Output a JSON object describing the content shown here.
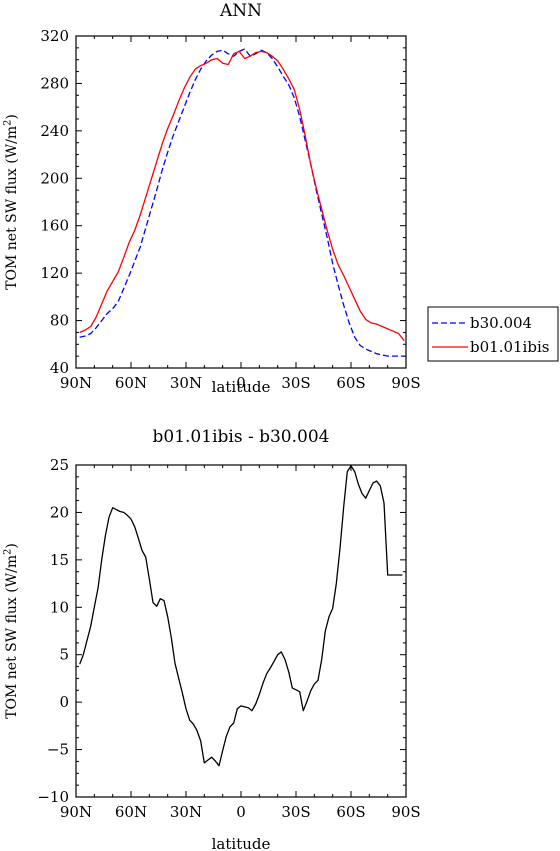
{
  "chart_data": [
    {
      "type": "line",
      "title": "ANN",
      "xlabel": "latitude",
      "ylabel": "TOM net SW flux (W/m~S~2~N~)",
      "xlim": [
        -90,
        90
      ],
      "ylim": [
        40,
        320
      ],
      "x_tick_values": [
        -90,
        -60,
        -30,
        0,
        30,
        60,
        90
      ],
      "x_tick_labels": [
        "90N",
        "60N",
        "30N",
        "0",
        "30S",
        "60S",
        "90S"
      ],
      "y_tick_values": [
        40,
        80,
        120,
        160,
        200,
        240,
        280,
        320
      ],
      "y_tick_labels": [
        "40",
        "80",
        "120",
        "160",
        "200",
        "240",
        "280",
        "320"
      ],
      "legend": {
        "placement": "right",
        "entries": [
          "b30.004",
          "b01.01ibis"
        ]
      },
      "series": [
        {
          "name": "b30.004",
          "color": "#0000ff",
          "dash": "dashed",
          "x": [
            -88,
            -85,
            -82,
            -79,
            -76,
            -73,
            -70,
            -67,
            -64,
            -61,
            -58,
            -55,
            -52,
            -49,
            -46,
            -43,
            -40,
            -37,
            -34,
            -31,
            -28,
            -25,
            -22,
            -19,
            -16,
            -13,
            -10,
            -7,
            -4,
            -1,
            2,
            5,
            8,
            11,
            14,
            17,
            20,
            23,
            26,
            29,
            32,
            35,
            38,
            41,
            44,
            47,
            50,
            53,
            56,
            59,
            62,
            65,
            68,
            71,
            74,
            77,
            80,
            83,
            86,
            89
          ],
          "y": [
            66,
            67,
            69,
            74,
            80,
            86,
            90,
            96,
            107,
            118,
            130,
            142,
            158,
            174,
            190,
            207,
            222,
            236,
            248,
            260,
            272,
            283,
            292,
            299,
            304,
            307,
            308,
            305,
            303,
            307,
            309,
            303,
            305,
            308,
            306,
            301,
            294,
            286,
            279,
            268,
            252,
            232,
            212,
            190,
            170,
            150,
            128,
            110,
            93,
            78,
            66,
            59,
            56,
            54,
            52,
            51,
            50,
            50,
            50,
            50
          ]
        },
        {
          "name": "b01.01ibis",
          "color": "#ff0000",
          "dash": "solid",
          "x": [
            -88,
            -85,
            -82,
            -79,
            -76,
            -73,
            -70,
            -67,
            -64,
            -61,
            -58,
            -55,
            -52,
            -49,
            -46,
            -43,
            -40,
            -37,
            -34,
            -31,
            -28,
            -25,
            -22,
            -19,
            -16,
            -13,
            -10,
            -7,
            -4,
            -1,
            2,
            5,
            8,
            11,
            14,
            17,
            20,
            23,
            26,
            29,
            32,
            35,
            38,
            41,
            44,
            47,
            50,
            53,
            56,
            59,
            62,
            65,
            68,
            71,
            74,
            77,
            80,
            83,
            86,
            89
          ],
          "y": [
            70,
            72,
            75,
            83,
            94,
            105,
            113,
            121,
            133,
            146,
            156,
            169,
            184,
            199,
            214,
            229,
            242,
            253,
            265,
            276,
            285,
            292,
            295,
            297,
            300,
            301,
            297,
            296,
            305,
            307,
            301,
            303,
            306,
            307,
            306,
            303,
            299,
            292,
            284,
            275,
            258,
            236,
            212,
            192,
            174,
            156,
            140,
            127,
            118,
            108,
            98,
            88,
            81,
            78,
            77,
            75,
            73,
            71,
            69,
            63
          ]
        }
      ]
    },
    {
      "type": "line",
      "title": "b01.01ibis - b30.004",
      "xlabel": "latitude",
      "ylabel": "TOM net SW flux (W/m~S~2~N~)",
      "xlim": [
        -90,
        90
      ],
      "ylim": [
        -10,
        25
      ],
      "x_tick_values": [
        -90,
        -60,
        -30,
        0,
        30,
        60,
        90
      ],
      "x_tick_labels": [
        "90N",
        "60N",
        "30N",
        "0",
        "30S",
        "60S",
        "90S"
      ],
      "y_tick_values": [
        -10,
        -5,
        0,
        5,
        10,
        15,
        20,
        25
      ],
      "y_tick_labels": [
        "−10",
        "−5",
        "0",
        "5",
        "10",
        "15",
        "20",
        "25"
      ],
      "series": [
        {
          "color": "#000000",
          "dash": "solid",
          "x": [
            -88,
            -86,
            -84,
            -82,
            -80,
            -78,
            -76,
            -74,
            -72,
            -70,
            -68,
            -66,
            -64,
            -62,
            -60,
            -58,
            -56,
            -54,
            -52,
            -50,
            -48,
            -46,
            -44,
            -42,
            -40,
            -38,
            -36,
            -34,
            -32,
            -30,
            -28,
            -26,
            -24,
            -22,
            -20,
            -18,
            -16,
            -14,
            -12,
            -10,
            -8,
            -6,
            -4,
            -2,
            0,
            2,
            4,
            6,
            8,
            10,
            12,
            14,
            16,
            18,
            20,
            22,
            24,
            26,
            28,
            30,
            32,
            34,
            36,
            38,
            40,
            42,
            44,
            46,
            48,
            50,
            52,
            54,
            56,
            58,
            60,
            62,
            64,
            66,
            68,
            70,
            72,
            74,
            76,
            78,
            80,
            82,
            84,
            86,
            88
          ],
          "y": [
            4,
            5,
            6.5,
            8,
            10,
            12,
            15,
            17.5,
            19.5,
            20.5,
            20.3,
            20.1,
            20.0,
            19.7,
            19.3,
            18.5,
            17.3,
            16.0,
            15.3,
            13.0,
            10.5,
            10.1,
            10.9,
            10.7,
            9.0,
            6.8,
            4.1,
            2.5,
            1.0,
            -0.7,
            -1.9,
            -2.3,
            -3.0,
            -4.1,
            -6.4,
            -6.1,
            -5.8,
            -6.2,
            -6.7,
            -5.1,
            -3.6,
            -2.6,
            -2.2,
            -0.7,
            -0.4,
            -0.5,
            -0.6,
            -0.9,
            -0.2,
            0.8,
            2.0,
            3.0,
            3.6,
            4.3,
            5.0,
            5.3,
            4.5,
            3.2,
            1.5,
            1.3,
            1.1,
            -0.9,
            0.1,
            1.2,
            1.9,
            2.3,
            4.5,
            7.5,
            9.0,
            9.9,
            12.5,
            16.2,
            20.6,
            24.3,
            24.9,
            24.3,
            23.0,
            22.0,
            21.5,
            22.3,
            23.1,
            23.3,
            22.8,
            21.0,
            13.4,
            13.4,
            13.4,
            13.4,
            13.4
          ]
        }
      ]
    }
  ]
}
